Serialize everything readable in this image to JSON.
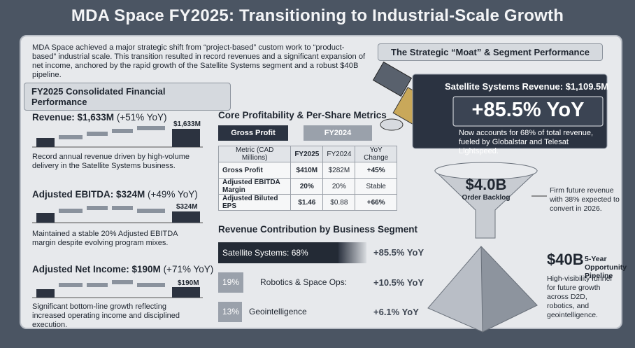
{
  "header": {
    "title": "MDA Space FY2025: Transitioning to Industrial-Scale Growth"
  },
  "intro": "MDA Space achieved a major strategic shift from “project-based” custom work to “product-based” industrial scale. This transition resulted in record revenues and a significant expansion of net income, anchored by the rapid growth of the Satellite Systems segment and a robust $40B pipeline.",
  "financials": {
    "heading": "FY2025 Consolidated Financial Performance",
    "metrics": [
      {
        "title": "Revenue: $1,633M",
        "change": "(+51% YoY)",
        "label": "$1,633M",
        "description": "Record annual revenue driven by high-volume delivery in the Satellite Systems business."
      },
      {
        "title": "Adjusted EBITDA: $324M",
        "change": "(+49% YoY)",
        "label": "$324M",
        "description": "Maintained a stable 20% Adjusted EBITDA margin despite evolving program mixes."
      },
      {
        "title": "Adjusted Net Income: $190M",
        "change": "(+71% YoY)",
        "label": "$190M",
        "description": "Significant bottom-line growth reflecting increased operating income and disciplined execution."
      }
    ]
  },
  "profitability": {
    "heading": "Core Profitability & Per-Share Metrics",
    "tabs": [
      "Gross Profit",
      "FY2024"
    ],
    "table": {
      "columns": [
        "Metric (CAD Millions)",
        "FY2025",
        "FY2024",
        "YoY Change"
      ],
      "rows": [
        [
          "Gross Profit",
          "$410M",
          "$282M",
          "+45%"
        ],
        [
          "Adjusted EBITDA Margin",
          "20%",
          "20%",
          "Stable"
        ],
        [
          "Adjusted Biluted EPS",
          "$1.46",
          "$0.88",
          "+66%"
        ]
      ]
    }
  },
  "segments": {
    "heading": "Revenue Contribution by Business Segment",
    "rows": [
      {
        "label": "Satellite Systems: 68%",
        "growth": "+85.5% YoY"
      },
      {
        "share": "19%",
        "label": "Robotics & Space Ops:",
        "growth": "+10.5% YoY"
      },
      {
        "share": "13%",
        "label": "Geointelligence",
        "growth": "+6.1% YoY"
      }
    ]
  },
  "moat": {
    "heading": "The Strategic “Moat” & Segment Performance",
    "satellite": {
      "title": "Satellite Systems Revenue: $1,109.5M",
      "growth": "+85.5% YoY",
      "description": "Now accounts for 68% of total revenue, fueled by Globalstar and Telesat Lightspeed."
    },
    "backlog": {
      "value": "$4.0B",
      "label": "Order Backlog",
      "description": "Firm future revenue with 38% expected to convert in 2026."
    },
    "pipeline": {
      "value": "$40B",
      "label": "5-Year Opportunity Pipeline",
      "description": "High-visibility funnel for future growth across D2D, robotics, and geointelligence."
    }
  }
}
